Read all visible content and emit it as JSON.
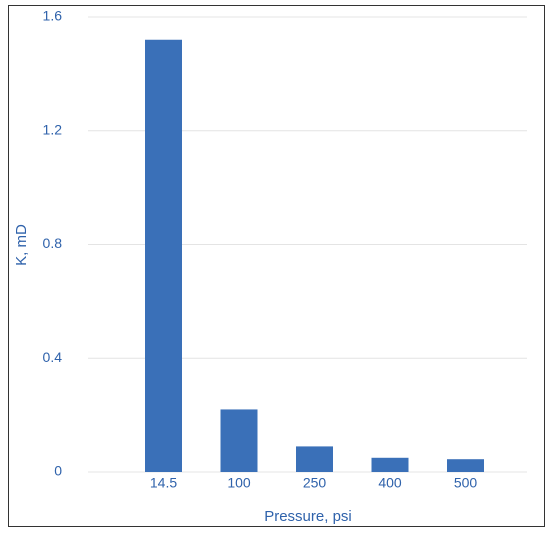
{
  "chart_data": {
    "type": "bar",
    "x_label": "Pressure, psi",
    "y_label": "K, mD",
    "categories": [
      "14.5",
      "100",
      "250",
      "400",
      "500"
    ],
    "values": [
      1.52,
      0.22,
      0.09,
      0.05,
      0.045
    ],
    "color": "#3a70b8",
    "ylim": [
      0,
      1.6
    ],
    "yticks": [
      0,
      0.4,
      0.8,
      1.2,
      1.6
    ],
    "grid": true
  }
}
